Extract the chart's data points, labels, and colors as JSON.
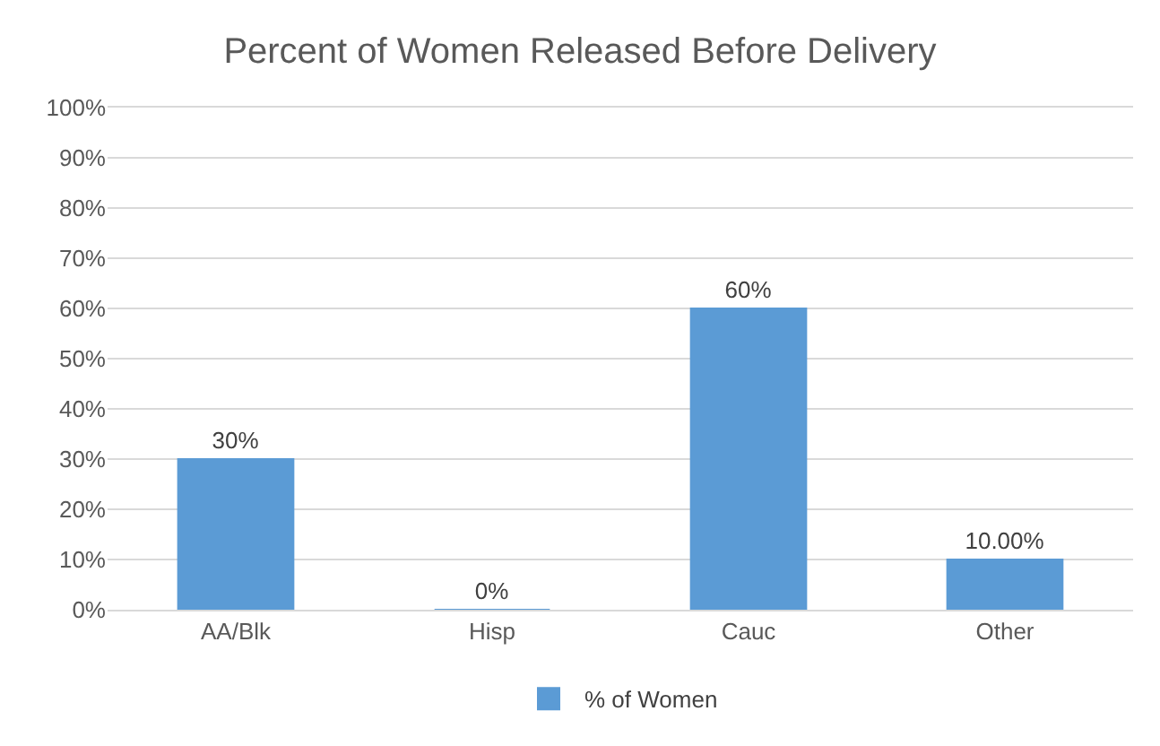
{
  "chart_data": {
    "type": "bar",
    "title": "Percent of Women Released Before Delivery",
    "categories": [
      "AA/Blk",
      "Hisp",
      "Cauc",
      "Other"
    ],
    "series": [
      {
        "name": "% of Women",
        "color": "#5b9bd5",
        "values": [
          30,
          0,
          60,
          10
        ],
        "value_labels": [
          "30%",
          "0%",
          "60%",
          "10.00%"
        ]
      }
    ],
    "ylim": [
      0,
      100
    ],
    "yticks": [
      {
        "value": 0,
        "label": "0%"
      },
      {
        "value": 10,
        "label": "10%"
      },
      {
        "value": 20,
        "label": "20%"
      },
      {
        "value": 30,
        "label": "30%"
      },
      {
        "value": 40,
        "label": "40%"
      },
      {
        "value": 50,
        "label": "50%"
      },
      {
        "value": 60,
        "label": "60%"
      },
      {
        "value": 70,
        "label": "70%"
      },
      {
        "value": 80,
        "label": "80%"
      },
      {
        "value": 90,
        "label": "90%"
      },
      {
        "value": 100,
        "label": "100%"
      }
    ],
    "grid": "y",
    "legend": "bottom"
  }
}
